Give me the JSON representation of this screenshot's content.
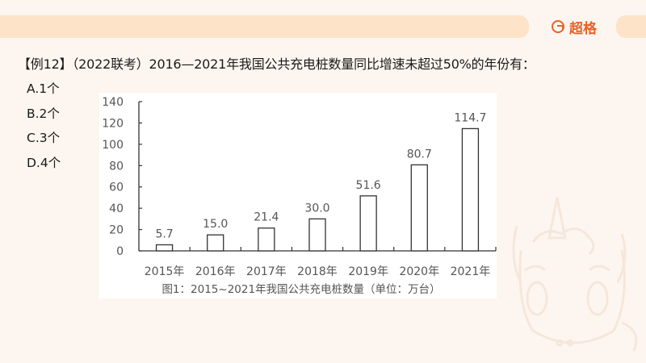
{
  "header": {
    "brand_name": "超格",
    "brand_icon": "g-logo-icon",
    "accent_color": "#e8622a",
    "bar_color": "#fde3c8"
  },
  "question": {
    "text": "【例12】（2022联考）2016—2021年我国公共充电桩数量同比增速未超过50%的年份有："
  },
  "options": [
    {
      "label": "A.1个"
    },
    {
      "label": "B.2个"
    },
    {
      "label": "C.3个"
    },
    {
      "label": "D.4个"
    }
  ],
  "chart_data": {
    "type": "bar",
    "title": "图1：2015~2021年我国公共充电桩数量（单位：万台）",
    "categories": [
      "2015年",
      "2016年",
      "2017年",
      "2018年",
      "2019年",
      "2020年",
      "2021年"
    ],
    "values": [
      5.7,
      15.0,
      21.4,
      30.0,
      51.6,
      80.7,
      114.7
    ],
    "value_labels": [
      "5.7",
      "15.0",
      "21.4",
      "30.0",
      "51.6",
      "80.7",
      "114.7"
    ],
    "xlabel": "",
    "ylabel": "",
    "ylim": [
      0,
      140
    ],
    "yticks": [
      0,
      20,
      40,
      60,
      80,
      100,
      120,
      140
    ],
    "grid": false,
    "legend": null,
    "bar_fill": "#ffffff",
    "bar_stroke": "#333333"
  }
}
